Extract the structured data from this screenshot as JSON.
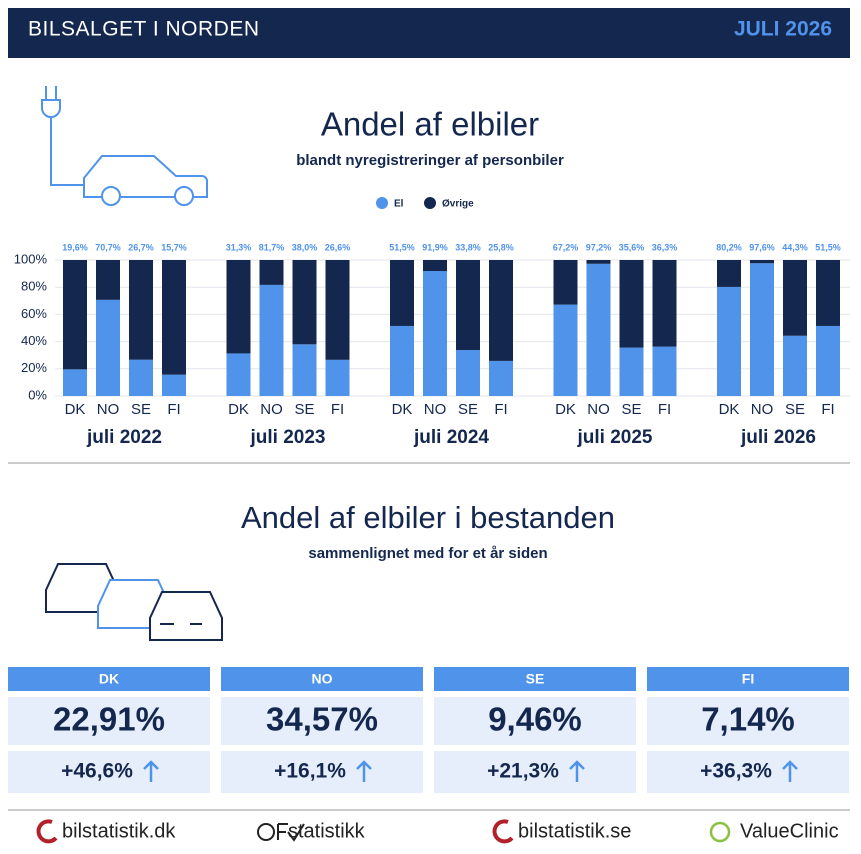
{
  "header": {
    "title": "BILSALGET I NORDEN",
    "date": "JULI 2026"
  },
  "chart_data": {
    "type": "bar",
    "stacked": true,
    "title": "Andel af elbiler",
    "subtitle": "blandt nyregistreringer af personbiler",
    "categories": [
      "DK",
      "NO",
      "SE",
      "FI",
      "DK",
      "NO",
      "SE",
      "FI",
      "DK",
      "NO",
      "SE",
      "FI",
      "DK",
      "NO",
      "SE",
      "FI",
      "DK",
      "NO",
      "SE",
      "FI"
    ],
    "groups": [
      "juli 2022",
      "juli 2023",
      "juli 2024",
      "juli 2025",
      "juli 2026"
    ],
    "series": [
      {
        "name": "El",
        "color": "#4f93ea",
        "values": [
          19.6,
          70.7,
          26.7,
          15.7,
          31.3,
          81.7,
          38.0,
          26.6,
          51.5,
          91.9,
          33.8,
          25.8,
          67.2,
          97.2,
          35.6,
          36.3,
          80.2,
          97.6,
          44.3,
          51.5
        ],
        "value_labels": [
          "19,6%",
          "70,7%",
          "26,7%",
          "15,7%",
          "31,3%",
          "81,7%",
          "38,0%",
          "26,6%",
          "51,5%",
          "91,9%",
          "33,8%",
          "25,8%",
          "67,2%",
          "97,2%",
          "35,6%",
          "36,3%",
          "80,2%",
          "97,6%",
          "44,3%",
          "51,5%"
        ]
      },
      {
        "name": "Øvrige",
        "color": "#14274e",
        "values": [
          80.4,
          29.3,
          73.3,
          84.3,
          68.7,
          18.3,
          62.0,
          73.4,
          48.5,
          8.1,
          66.2,
          74.2,
          32.8,
          2.8,
          64.4,
          63.7,
          19.8,
          2.4,
          55.7,
          48.5
        ]
      }
    ],
    "ylim": [
      0,
      100
    ],
    "yticks": [
      {
        "value": 0,
        "label": "0%"
      },
      {
        "value": 20,
        "label": "20%"
      },
      {
        "value": 40,
        "label": "40%"
      },
      {
        "value": 60,
        "label": "60%"
      },
      {
        "value": 80,
        "label": "80%"
      },
      {
        "value": 100,
        "label": "100%"
      }
    ],
    "grid": true,
    "legend": "top"
  },
  "stock": {
    "title": "Andel af elbiler i bestanden",
    "subtitle": "sammenlignet med for et år siden",
    "cards": [
      {
        "country": "DK",
        "share": "22,91%",
        "change": "+46,6%"
      },
      {
        "country": "NO",
        "share": "34,57%",
        "change": "+16,1%"
      },
      {
        "country": "SE",
        "share": "9,46%",
        "change": "+21,3%"
      },
      {
        "country": "FI",
        "share": "7,14%",
        "change": "+36,3%"
      }
    ]
  },
  "footer": {
    "logos": [
      "bilstatistik.dk",
      "statistikk",
      "bilstatistik.se",
      "ValueClinic"
    ]
  }
}
